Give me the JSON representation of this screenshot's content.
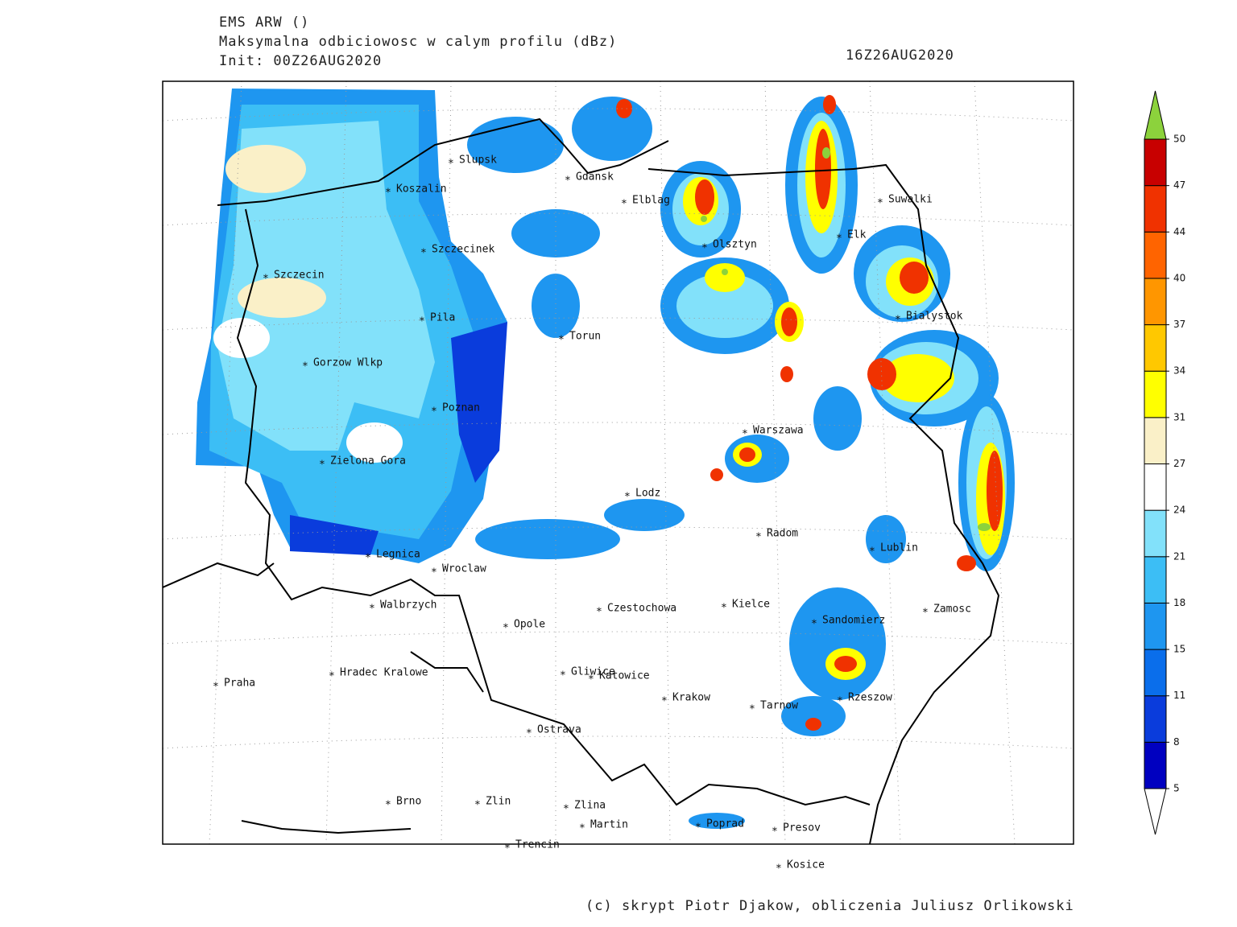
{
  "header": {
    "model": "EMS ARW ()",
    "field": "Maksymalna odbiciowosc w calym profilu (dBz)",
    "init": "Init: 00Z26AUG2020",
    "valid": "16Z26AUG2020"
  },
  "cities": [
    "Slupsk",
    "Koszalin",
    "Gdansk",
    "Elblag",
    "Suwalki",
    "Szczecinek",
    "Olsztyn",
    "Elk",
    "Szczecin",
    "Pila",
    "Torun",
    "Bialystok",
    "Gorzow Wlkp",
    "Poznan",
    "Warszawa",
    "Zielona Gora",
    "Lodz",
    "Radom",
    "Lublin",
    "Legnica",
    "Wroclaw",
    "Walbrzych",
    "Czestochowa",
    "Kielce",
    "Opole",
    "Sandomierz",
    "Zamosc",
    "Praha",
    "Hradec Kralowe",
    "Gliwice",
    "Katowice",
    "Krakow",
    "Tarnow",
    "Rzeszow",
    "Ostrava",
    "Brno",
    "Zlin",
    "Zlina",
    "Martin",
    "Poprad",
    "Presov",
    "Trencin",
    "Kosice"
  ],
  "colorbar": {
    "levels": [
      5,
      8,
      11,
      15,
      18,
      21,
      24,
      27,
      31,
      34,
      37,
      40,
      44,
      47,
      50
    ],
    "colors": [
      "#0000c0",
      "#0a3cdc",
      "#0a6eeb",
      "#1e96f0",
      "#3cbef5",
      "#82e1fa",
      "#ffffff",
      "#faf0c8",
      "#ffff00",
      "#ffc800",
      "#ff9600",
      "#ff6400",
      "#f03200",
      "#c80000"
    ],
    "under_color": "#ffffff",
    "over_color": "#8cd23c"
  },
  "footer": "(c) skrypt Piotr Djakow, obliczenia Juliusz Orlikowski"
}
